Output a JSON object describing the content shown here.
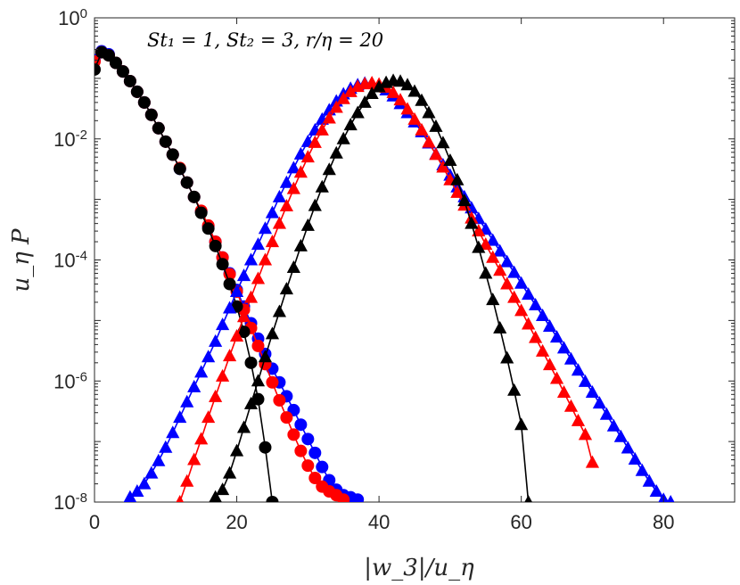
{
  "chart_data": {
    "type": "line",
    "xlabel": "|w_3|/u_η",
    "ylabel": "u_η P",
    "xlim": [
      0,
      90
    ],
    "ylim": [
      1e-08,
      1
    ],
    "yscale": "log",
    "x_ticks": [
      0,
      20,
      40,
      60,
      80
    ],
    "x_tick_labels": [
      "0",
      "20",
      "40",
      "60",
      "80"
    ],
    "y_ticks": [
      1e-08,
      1e-06,
      0.0001,
      0.01,
      1
    ],
    "y_tick_labels": [
      {
        "base": "10",
        "exp": "-8"
      },
      {
        "base": "10",
        "exp": "-6"
      },
      {
        "base": "10",
        "exp": "-4"
      },
      {
        "base": "10",
        "exp": "-2"
      },
      {
        "base": "10",
        "exp": "0"
      }
    ],
    "annotation": "St₁ = 1, St₂ = 3, r/η = 20",
    "colors": {
      "blue": "#0000ff",
      "red": "#ff0000",
      "black": "#000000"
    },
    "series": [
      {
        "name": "circle-blue",
        "color": "#0000ff",
        "marker": "circle",
        "x": [
          0,
          1,
          2,
          3,
          4,
          5,
          6,
          7,
          8,
          9,
          10,
          11,
          12,
          13,
          14,
          15,
          16,
          17,
          18,
          19,
          20,
          21,
          22,
          23,
          24,
          25,
          26,
          27,
          28,
          29,
          30,
          31,
          32,
          33,
          34,
          35,
          36,
          37
        ],
        "y": [
          0.2,
          0.28,
          0.25,
          0.18,
          0.13,
          0.09,
          0.06,
          0.04,
          0.025,
          0.015,
          0.009,
          0.0055,
          0.0032,
          0.0019,
          0.0011,
          0.00063,
          0.00036,
          0.0002,
          0.00011,
          6e-05,
          3.2e-05,
          1.7e-05,
          9e-06,
          5e-06,
          2.8e-06,
          1.6e-06,
          9.5e-07,
          5.6e-07,
          3.3e-07,
          1.9e-07,
          1.1e-07,
          6.5e-08,
          3.8e-08,
          2.3e-08,
          1.6e-08,
          1.3e-08,
          1.2e-08,
          1.1e-08
        ]
      },
      {
        "name": "circle-red",
        "color": "#ff0000",
        "marker": "circle",
        "x": [
          0,
          1,
          2,
          3,
          4,
          5,
          6,
          7,
          8,
          9,
          10,
          11,
          12,
          13,
          14,
          15,
          16,
          17,
          18,
          19,
          20,
          21,
          22,
          23,
          24,
          25,
          26,
          27,
          28,
          29,
          30,
          31,
          32,
          33,
          34,
          35
        ],
        "y": [
          0.19,
          0.27,
          0.24,
          0.18,
          0.13,
          0.09,
          0.06,
          0.04,
          0.025,
          0.015,
          0.009,
          0.0055,
          0.0033,
          0.0019,
          0.0011,
          0.00065,
          0.00037,
          0.0002,
          0.00011,
          5.8e-05,
          3e-05,
          1.5e-05,
          7.5e-06,
          3.8e-06,
          1.9e-06,
          9.5e-07,
          4.8e-07,
          2.5e-07,
          1.3e-07,
          7e-08,
          4e-08,
          2.5e-08,
          1.8e-08,
          1.5e-08,
          1.3e-08,
          1.1e-08
        ]
      },
      {
        "name": "circle-black",
        "color": "#000000",
        "marker": "circle",
        "x": [
          0,
          1,
          2,
          3,
          4,
          5,
          6,
          7,
          8,
          9,
          10,
          11,
          12,
          13,
          14,
          15,
          16,
          17,
          18,
          19,
          20,
          21,
          22,
          23,
          24,
          25
        ],
        "y": [
          0.14,
          0.27,
          0.24,
          0.18,
          0.13,
          0.09,
          0.06,
          0.04,
          0.025,
          0.015,
          0.009,
          0.0055,
          0.0032,
          0.0019,
          0.0011,
          0.0006,
          0.00033,
          0.00017,
          8.5e-05,
          4e-05,
          1.7e-05,
          6.5e-06,
          2e-06,
          5e-07,
          8e-08,
          1e-08
        ]
      },
      {
        "name": "triangle-blue",
        "color": "#0000ff",
        "marker": "triangle",
        "x": [
          5,
          6,
          7,
          8,
          9,
          10,
          11,
          12,
          13,
          14,
          15,
          16,
          17,
          18,
          19,
          20,
          21,
          22,
          23,
          24,
          25,
          26,
          27,
          28,
          29,
          30,
          31,
          32,
          33,
          34,
          35,
          36,
          37,
          38,
          39,
          40,
          41,
          42,
          43,
          44,
          45,
          46,
          47,
          48,
          49,
          50,
          51,
          52,
          53,
          54,
          55,
          56,
          57,
          58,
          59,
          60,
          61,
          62,
          63,
          64,
          65,
          66,
          67,
          68,
          69,
          70,
          71,
          72,
          73,
          74,
          75,
          76,
          77,
          78,
          79,
          80,
          81
        ],
        "y": [
          1.2e-08,
          1.5e-08,
          2e-08,
          3e-08,
          4.8e-08,
          8e-08,
          1.4e-07,
          2.5e-07,
          4.5e-07,
          8e-07,
          1.4e-06,
          2.5e-06,
          4.5e-06,
          8.5e-06,
          1.6e-05,
          3e-05,
          5.5e-05,
          0.0001,
          0.00018,
          0.00033,
          0.0006,
          0.0011,
          0.0019,
          0.0033,
          0.0056,
          0.009,
          0.014,
          0.021,
          0.03,
          0.042,
          0.055,
          0.068,
          0.078,
          0.083,
          0.082,
          0.075,
          0.064,
          0.051,
          0.038,
          0.027,
          0.019,
          0.013,
          0.0085,
          0.0056,
          0.0037,
          0.0025,
          0.0016,
          0.0011,
          0.00072,
          0.00048,
          0.00032,
          0.00021,
          0.00014,
          9.3e-05,
          6.2e-05,
          4.1e-05,
          2.7e-05,
          1.8e-05,
          1.2e-05,
          8e-06,
          5.3e-06,
          3.5e-06,
          2.3e-06,
          1.5e-06,
          9.8e-07,
          6.5e-07,
          4.3e-07,
          2.8e-07,
          1.8e-07,
          1.2e-07,
          7.8e-08,
          5.1e-08,
          3.3e-08,
          2.2e-08,
          1.5e-08,
          1.1e-08,
          1e-08
        ]
      },
      {
        "name": "triangle-red",
        "color": "#ff0000",
        "marker": "triangle",
        "x": [
          12,
          13,
          14,
          15,
          16,
          17,
          18,
          19,
          20,
          21,
          22,
          23,
          24,
          25,
          26,
          27,
          28,
          29,
          30,
          31,
          32,
          33,
          34,
          35,
          36,
          37,
          38,
          39,
          40,
          41,
          42,
          43,
          44,
          45,
          46,
          47,
          48,
          49,
          50,
          51,
          52,
          53,
          54,
          55,
          56,
          57,
          58,
          59,
          60,
          61,
          62,
          63,
          64,
          65,
          66,
          67,
          68,
          69,
          70
        ],
        "y": [
          1e-08,
          2.2e-08,
          5e-08,
          1.1e-07,
          2.5e-07,
          5.5e-07,
          1.2e-06,
          2.6e-06,
          5.5e-06,
          1.15e-05,
          2.4e-05,
          4.9e-05,
          0.0001,
          0.0002,
          0.0004,
          0.00078,
          0.0015,
          0.0028,
          0.005,
          0.0087,
          0.014,
          0.022,
          0.033,
          0.046,
          0.06,
          0.073,
          0.081,
          0.084,
          0.08,
          0.071,
          0.058,
          0.044,
          0.031,
          0.021,
          0.014,
          0.0088,
          0.0055,
          0.0034,
          0.0021,
          0.0013,
          0.0008,
          0.00049,
          0.0003,
          0.00018,
          0.00011,
          6.7e-05,
          4e-05,
          2.4e-05,
          1.45e-05,
          8.7e-06,
          5.2e-06,
          3.1e-06,
          1.85e-06,
          1.1e-06,
          6.5e-07,
          3.8e-07,
          2.2e-07,
          1.3e-07,
          4.5e-08
        ]
      },
      {
        "name": "triangle-black",
        "color": "#000000",
        "marker": "triangle",
        "x": [
          17,
          18,
          19,
          20,
          21,
          22,
          23,
          24,
          25,
          26,
          27,
          28,
          29,
          30,
          31,
          32,
          33,
          34,
          35,
          36,
          37,
          38,
          39,
          40,
          41,
          42,
          43,
          44,
          45,
          46,
          47,
          48,
          49,
          50,
          51,
          52,
          53,
          54,
          55,
          56,
          57,
          58,
          59,
          60,
          61
        ],
        "y": [
          1.2e-08,
          1.6e-08,
          3e-08,
          7e-08,
          1.7e-07,
          4.2e-07,
          1e-06,
          2.5e-06,
          6e-06,
          1.4e-05,
          3.3e-05,
          7.5e-05,
          0.00017,
          0.00037,
          0.00079,
          0.0016,
          0.0031,
          0.0058,
          0.01,
          0.017,
          0.027,
          0.04,
          0.056,
          0.072,
          0.085,
          0.092,
          0.089,
          0.078,
          0.061,
          0.043,
          0.027,
          0.016,
          0.0086,
          0.0044,
          0.0021,
          0.00095,
          0.0004,
          0.00016,
          6e-05,
          2.2e-05,
          7.5e-06,
          2.4e-06,
          7e-07,
          1.9e-07,
          1e-08
        ]
      }
    ]
  }
}
